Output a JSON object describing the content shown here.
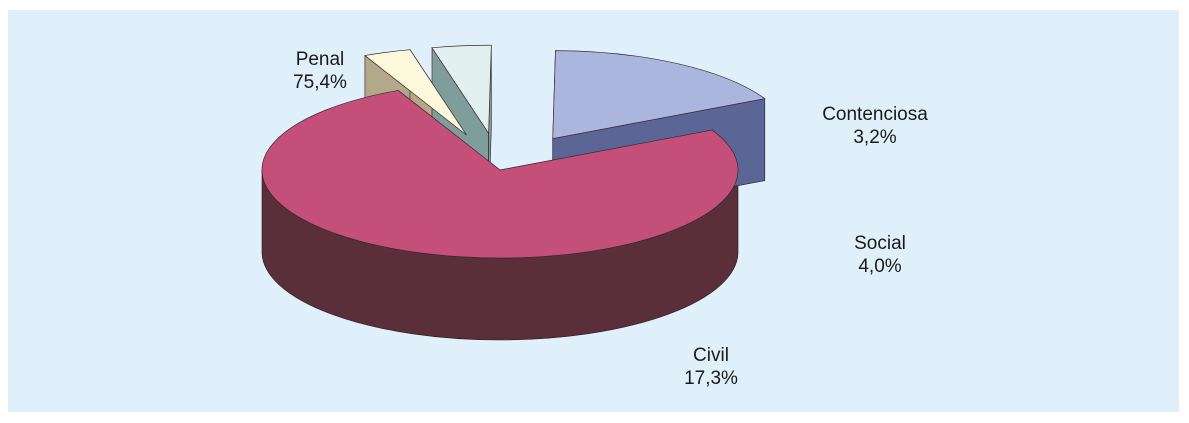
{
  "chart_data": {
    "type": "pie",
    "title": "",
    "slices": [
      {
        "name": "Penal",
        "value": 75.4,
        "label": "75,4%",
        "color": "#c4507a",
        "side": "#5a2f39"
      },
      {
        "name": "Contenciosa",
        "value": 3.2,
        "label": "3,2%",
        "color": "#fcf8dc",
        "side": "#b3a98a"
      },
      {
        "name": "Social",
        "value": 4.0,
        "label": "4,0%",
        "color": "#e2f1ef",
        "side": "#7f9e9b"
      },
      {
        "name": "Civil",
        "value": 17.3,
        "label": "17,3%",
        "color": "#aab6de",
        "side": "#5b6696"
      }
    ],
    "exploded": [
      "Contenciosa",
      "Social",
      "Civil"
    ],
    "style": "3d-exploded",
    "background": "#dff0fa"
  }
}
